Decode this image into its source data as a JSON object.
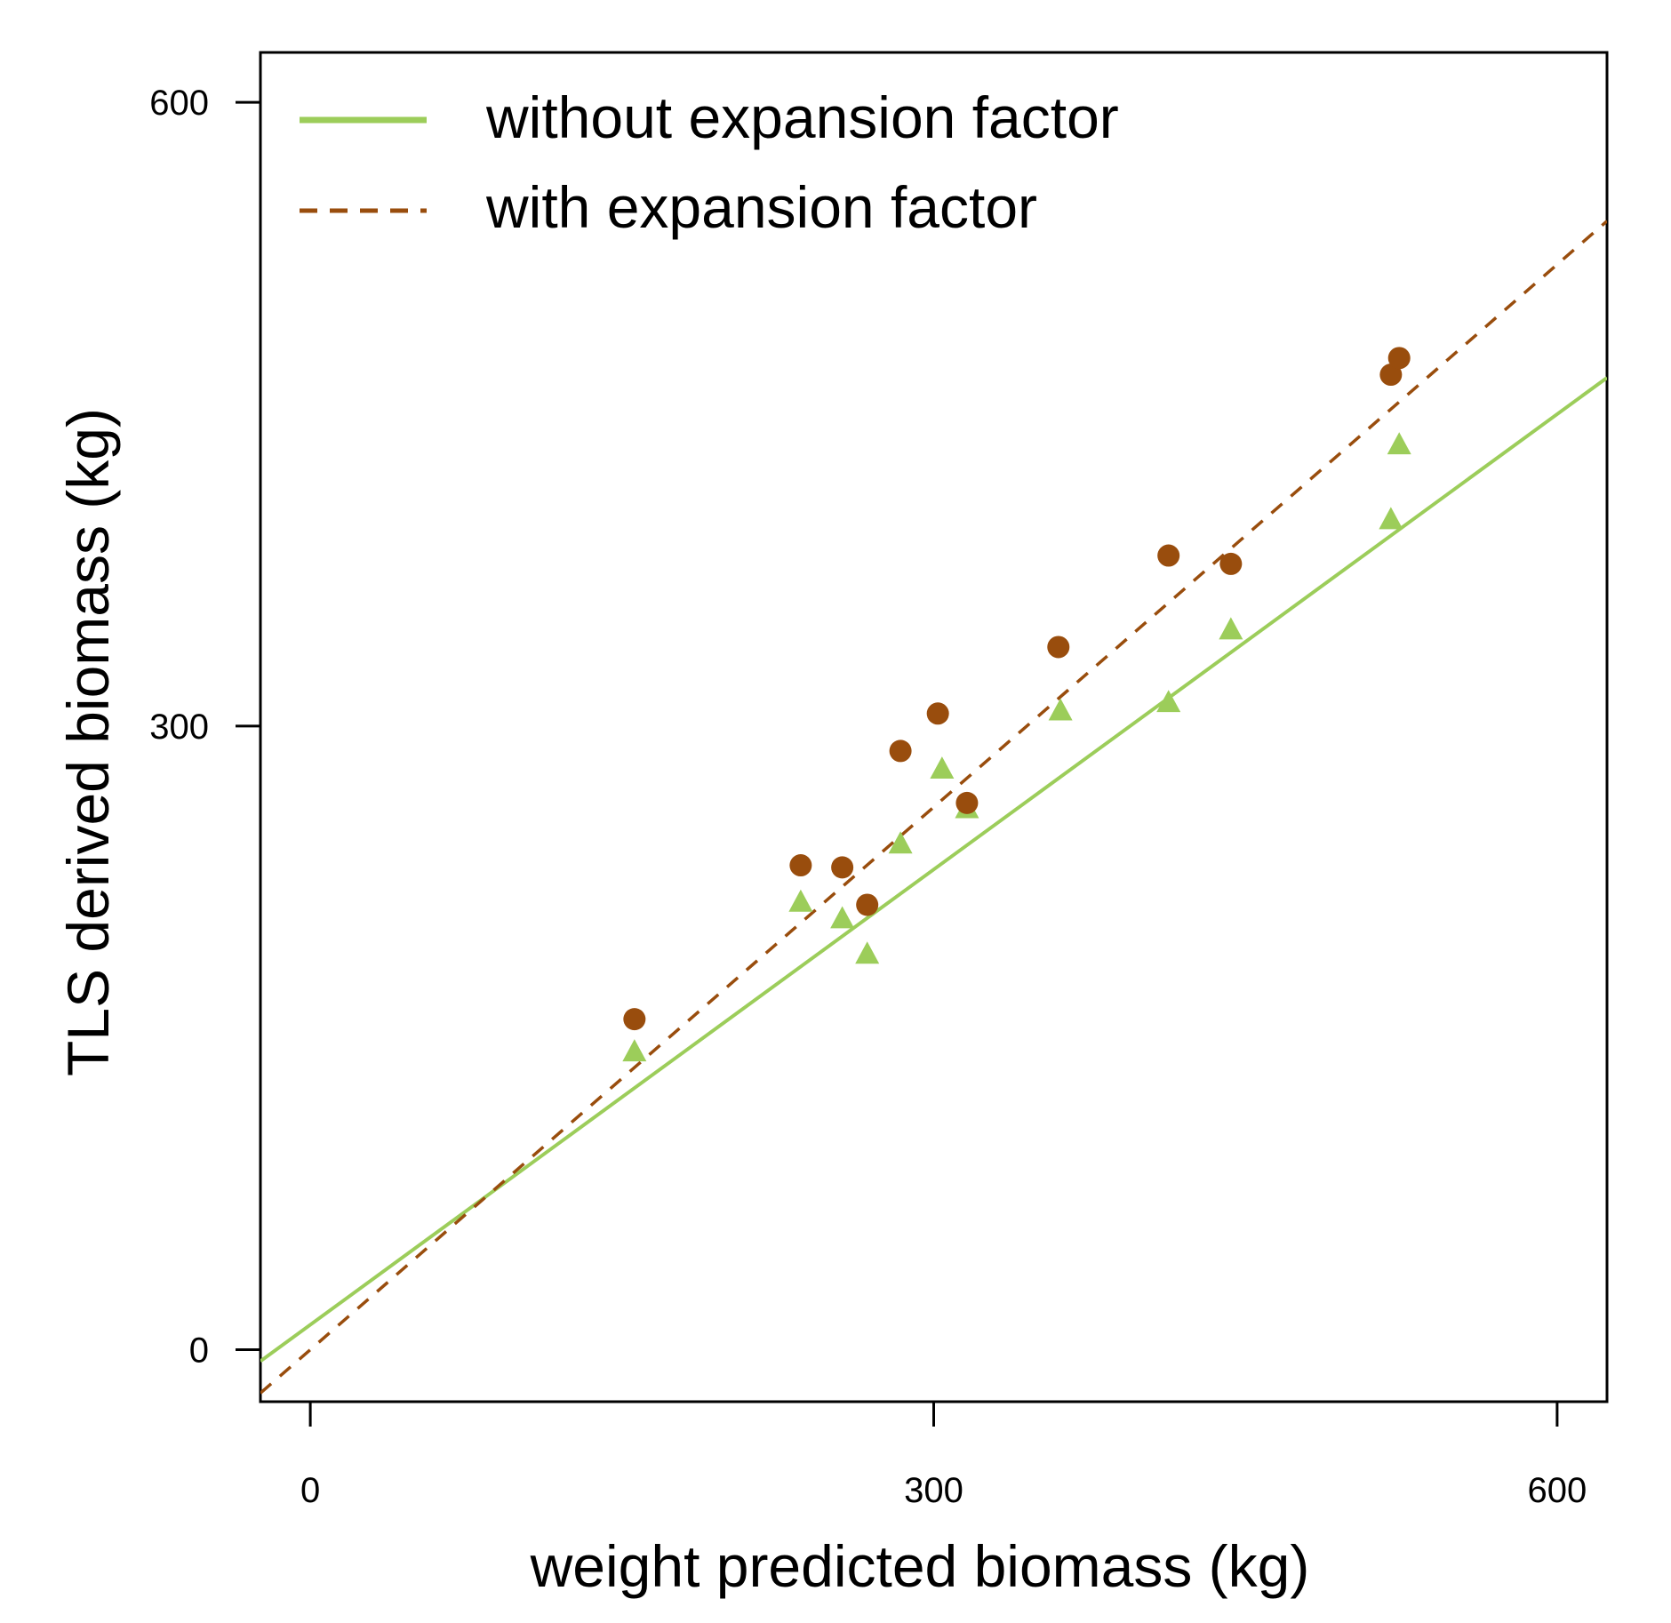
{
  "colors": {
    "without": "#9ccd5a",
    "with": "#994d0d",
    "axis": "#000000"
  },
  "chart_data": {
    "type": "scatter",
    "title": "",
    "xlabel": "weight predicted biomass (kg)",
    "ylabel": "TLS derived biomass (kg)",
    "xlim": [
      -24,
      624
    ],
    "ylim": [
      -25,
      624
    ],
    "xticks": [
      0,
      300,
      600
    ],
    "yticks": [
      0,
      300,
      600
    ],
    "xtick_labels": [
      "0",
      "300",
      "600"
    ],
    "ytick_labels": [
      "0",
      "300",
      "600"
    ],
    "grid": false,
    "legend_position": "top-left",
    "series": [
      {
        "name": "without expansion factor",
        "marker": "triangle",
        "line_style": "solid",
        "fit": {
          "intercept": 12,
          "slope": 0.73
        },
        "points": [
          {
            "x": 156,
            "y": 143
          },
          {
            "x": 236,
            "y": 215
          },
          {
            "x": 256,
            "y": 207
          },
          {
            "x": 268,
            "y": 190
          },
          {
            "x": 284,
            "y": 243
          },
          {
            "x": 304,
            "y": 279
          },
          {
            "x": 316,
            "y": 260
          },
          {
            "x": 361,
            "y": 307
          },
          {
            "x": 413,
            "y": 311
          },
          {
            "x": 443,
            "y": 346
          },
          {
            "x": 520,
            "y": 399
          },
          {
            "x": 524,
            "y": 435
          }
        ]
      },
      {
        "name": "with expansion factor",
        "marker": "circle",
        "line_style": "dashed",
        "fit": {
          "intercept": 0,
          "slope": 0.87
        },
        "points": [
          {
            "x": 156,
            "y": 159
          },
          {
            "x": 236,
            "y": 233
          },
          {
            "x": 256,
            "y": 232
          },
          {
            "x": 268,
            "y": 214
          },
          {
            "x": 284,
            "y": 288
          },
          {
            "x": 302,
            "y": 306
          },
          {
            "x": 316,
            "y": 263
          },
          {
            "x": 360,
            "y": 338
          },
          {
            "x": 413,
            "y": 382
          },
          {
            "x": 443,
            "y": 378
          },
          {
            "x": 520,
            "y": 469
          },
          {
            "x": 524,
            "y": 477
          }
        ]
      }
    ]
  }
}
